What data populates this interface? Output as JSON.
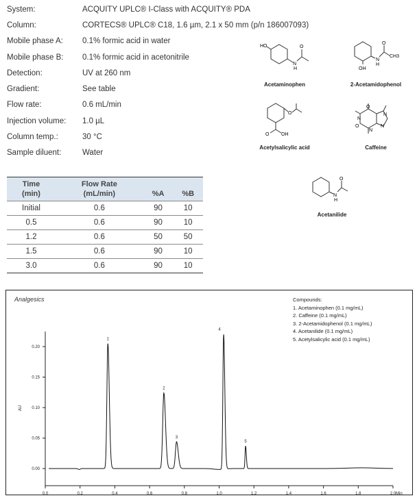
{
  "conditions": [
    {
      "label": "System:",
      "value": "ACQUITY UPLC® I-Class with ACQUITY® PDA"
    },
    {
      "label": "Column:",
      "value": "CORTECS® UPLC® C18, 1.6 µm, 2.1 x 50 mm (p/n 186007093)"
    },
    {
      "label": "Mobile phase A:",
      "value": "0.1% formic acid in water"
    },
    {
      "label": "Mobile phase B:",
      "value": "0.1% formic acid in acetonitrile"
    },
    {
      "label": "Detection:",
      "value": "UV at 260 nm"
    },
    {
      "label": "Gradient:",
      "value": "See table"
    },
    {
      "label": "Flow rate:",
      "value": "0.6 mL/min"
    },
    {
      "label": "Injection volume:",
      "value": "1.0 µL"
    },
    {
      "label": "Column temp.:",
      "value": "30 °C"
    },
    {
      "label": "Sample diluent:",
      "value": "Water"
    }
  ],
  "gradient_table": {
    "headers": [
      [
        "Time",
        "(min)"
      ],
      [
        "Flow Rate",
        "(mL/min)"
      ],
      [
        "",
        "%A"
      ],
      [
        "",
        "%B"
      ]
    ],
    "rows": [
      [
        "Initial",
        "0.6",
        "90",
        "10"
      ],
      [
        "0.5",
        "0.6",
        "90",
        "10"
      ],
      [
        "1.2",
        "0.6",
        "50",
        "50"
      ],
      [
        "1.5",
        "0.6",
        "90",
        "10"
      ],
      [
        "3.0",
        "0.6",
        "90",
        "10"
      ]
    ]
  },
  "structures": [
    {
      "name": "Acetaminophen",
      "atoms": [
        "HO",
        "N",
        "H",
        "O"
      ]
    },
    {
      "name": "2-Acetamidophenol",
      "atoms": [
        "H",
        "N",
        "O",
        "CH3",
        "OH"
      ]
    },
    {
      "name": "Acetylsalicylic acid",
      "atoms": [
        "O",
        "O",
        "O",
        "OH"
      ]
    },
    {
      "name": "Caffeine",
      "atoms": [
        "O",
        "N",
        "N",
        "N",
        "N",
        "O"
      ]
    },
    {
      "name": "Acetanilide",
      "atoms": [
        "H",
        "N",
        "O"
      ]
    }
  ],
  "chart_data": {
    "type": "line",
    "title": "Analgesics",
    "xlabel": "Min",
    "ylabel": "AU",
    "xlim": [
      0.0,
      2.0
    ],
    "ylim": [
      -0.01,
      0.23
    ],
    "xticks": [
      "0.0",
      "0.2",
      "0.4",
      "0.6",
      "0.8",
      "1.0",
      "1.2",
      "1.4",
      "1.6",
      "1.8",
      "2.0"
    ],
    "yticks": [
      "0.00",
      "0.05",
      "0.10",
      "0.15",
      "0.20"
    ],
    "grid": false,
    "legend_placement": "top-right",
    "legend_title": "Compounds:",
    "legend": [
      "1. Acetaminophen (0.1 mg/mL)",
      "2. Caffeine (0.1 mg/mL)",
      "3. 2-Acetamidophenol (0.1 mg/mL)",
      "4. Acetanilide (0.1 mg/mL)",
      "5. Acetylsalicylic acid (0.1 mg/mL)"
    ],
    "peaks": [
      {
        "label": "1",
        "rt": 0.36,
        "height": 0.205
      },
      {
        "label": "2",
        "rt": 0.682,
        "height": 0.124
      },
      {
        "label": "3",
        "rt": 0.755,
        "height": 0.044
      },
      {
        "label": "4",
        "rt": 1.026,
        "height": 0.221
      },
      {
        "label": "5",
        "rt": 1.152,
        "height": 0.037
      }
    ],
    "color": "#111111"
  }
}
